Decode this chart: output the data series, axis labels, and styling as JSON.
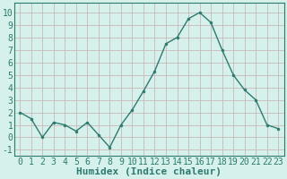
{
  "x": [
    0,
    1,
    2,
    3,
    4,
    5,
    6,
    7,
    8,
    9,
    10,
    11,
    12,
    13,
    14,
    15,
    16,
    17,
    18,
    19,
    20,
    21,
    22,
    23
  ],
  "y": [
    2.0,
    1.5,
    0.0,
    1.2,
    1.0,
    0.5,
    1.2,
    0.2,
    -0.8,
    1.0,
    2.2,
    3.7,
    5.3,
    7.5,
    8.0,
    9.5,
    10.0,
    9.2,
    7.0,
    5.0,
    3.8,
    3.0,
    1.0,
    0.7
  ],
  "xlabel": "Humidex (Indice chaleur)",
  "ylim": [
    -1.5,
    10.8
  ],
  "xlim": [
    -0.5,
    23.5
  ],
  "yticks": [
    -1,
    0,
    1,
    2,
    3,
    4,
    5,
    6,
    7,
    8,
    9,
    10
  ],
  "xticks": [
    0,
    1,
    2,
    3,
    4,
    5,
    6,
    7,
    8,
    9,
    10,
    11,
    12,
    13,
    14,
    15,
    16,
    17,
    18,
    19,
    20,
    21,
    22,
    23
  ],
  "line_color": "#2d7b6f",
  "marker_color": "#2d7b6f",
  "bg_color": "#d6f0eb",
  "grid_color": "#c8b8b8",
  "xlabel_color": "#2d7b6f",
  "tick_label_color": "#2d7b6f",
  "spine_color": "#2d7b6f",
  "font_size_xlabel": 8,
  "font_size_ticks": 7
}
